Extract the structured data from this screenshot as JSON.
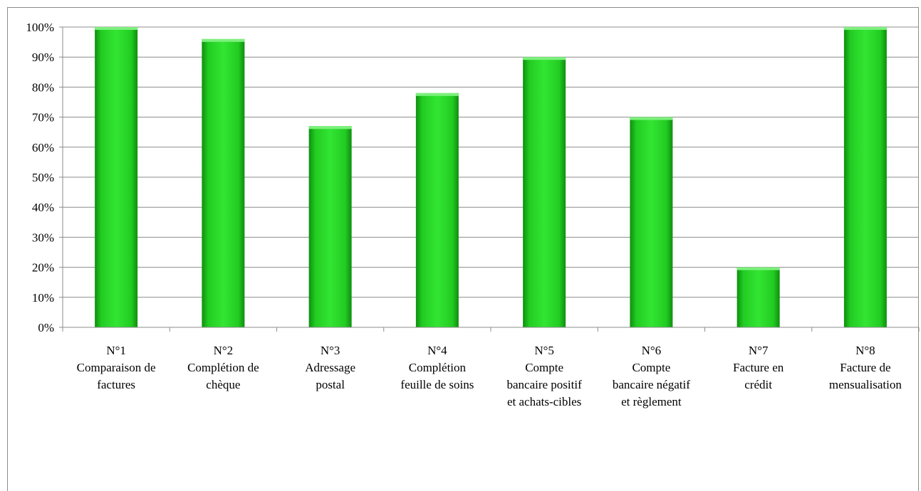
{
  "chart_data": {
    "type": "bar",
    "categories": [
      [
        "N°1",
        "Comparaison de",
        "factures"
      ],
      [
        "N°2",
        "Complétion de",
        "chèque"
      ],
      [
        "N°3",
        "Adressage",
        "postal"
      ],
      [
        "N°4",
        "Complétion",
        "feuille de soins"
      ],
      [
        "N°5",
        "Compte",
        "bancaire positif",
        "et achats-cibles"
      ],
      [
        "N°6",
        "Compte",
        "bancaire négatif",
        "et règlement"
      ],
      [
        "N°7",
        "Facture en",
        "crédit"
      ],
      [
        "N°8",
        "Facture de",
        "mensualisation"
      ]
    ],
    "values": [
      100,
      96,
      67,
      78,
      90,
      70,
      20,
      100
    ],
    "ylim": [
      0,
      100
    ],
    "yticks": [
      "0%",
      "10%",
      "20%",
      "30%",
      "40%",
      "50%",
      "60%",
      "70%",
      "80%",
      "90%",
      "100%"
    ],
    "grid": true,
    "legend": "none",
    "bar_color": "#22cc22"
  }
}
